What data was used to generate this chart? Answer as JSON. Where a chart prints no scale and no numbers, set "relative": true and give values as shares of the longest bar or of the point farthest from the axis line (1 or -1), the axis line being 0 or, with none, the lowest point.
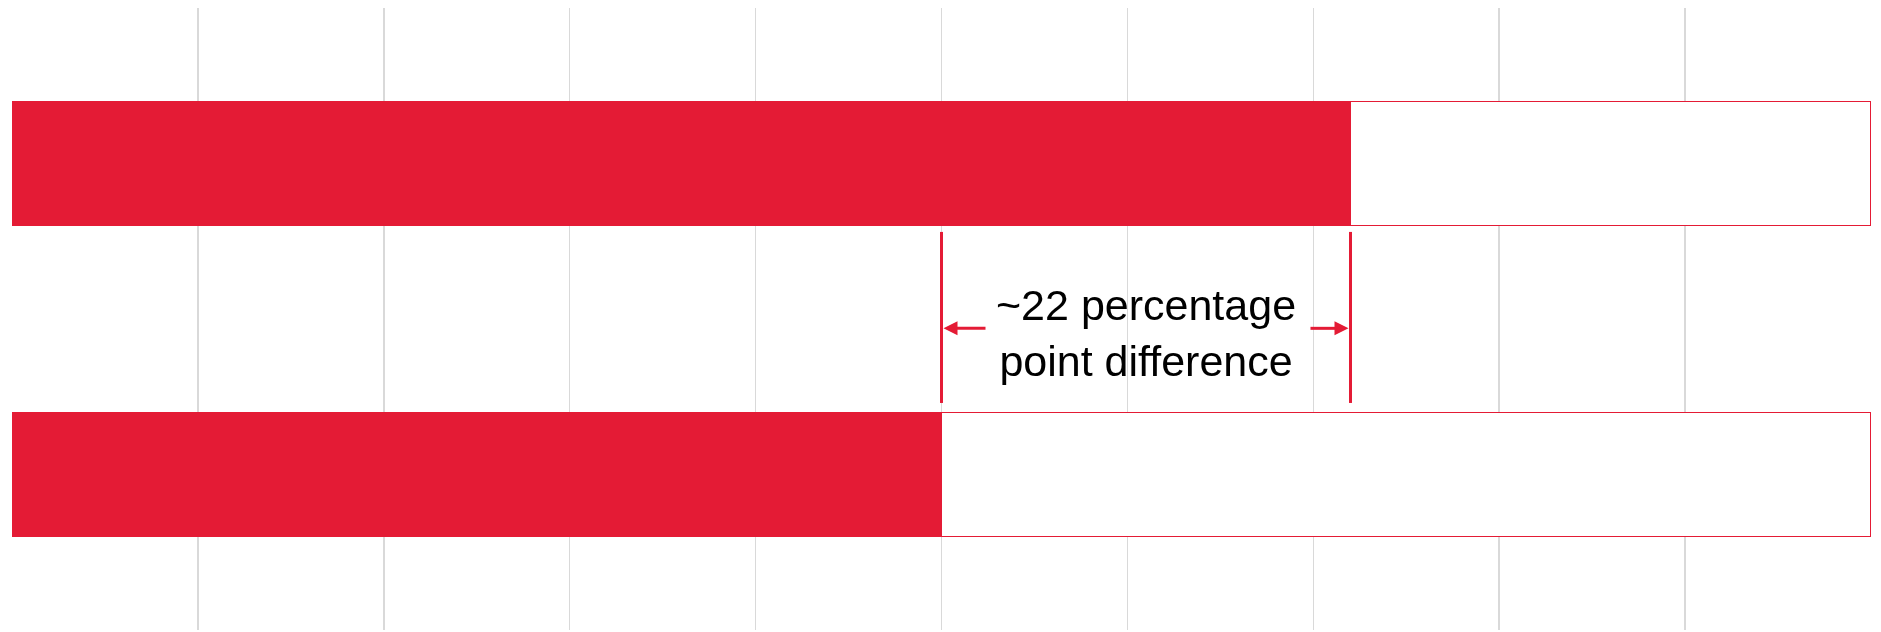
{
  "chart_data": {
    "type": "bar",
    "orientation": "horizontal",
    "stacked": true,
    "relative": true,
    "grid": "x",
    "categories": [
      null,
      null
    ],
    "series": [
      {
        "color": "#e41b35",
        "values": [
          0.72,
          0.5
        ]
      },
      {
        "color": "#ffffff",
        "values": [
          0.28,
          0.5
        ]
      }
    ],
    "annotations": [
      "~22 percentage point difference"
    ]
  }
}
